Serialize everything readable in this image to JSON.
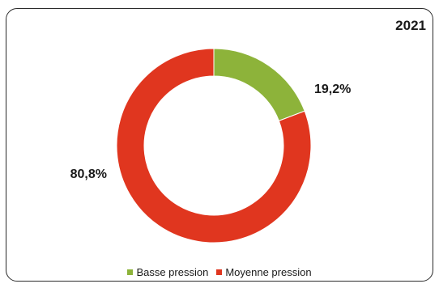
{
  "chart_data": {
    "type": "pie",
    "subtype": "donut",
    "title": "2021",
    "slices": [
      {
        "label": "Basse pression",
        "value": 19.2,
        "display": "19,2%",
        "color": "#8db33a"
      },
      {
        "label": "Moyenne pression",
        "value": 80.8,
        "display": "80,8%",
        "color": "#e0361f"
      }
    ],
    "legend_position": "bottom",
    "start_angle_deg": 0,
    "direction": "clockwise"
  }
}
